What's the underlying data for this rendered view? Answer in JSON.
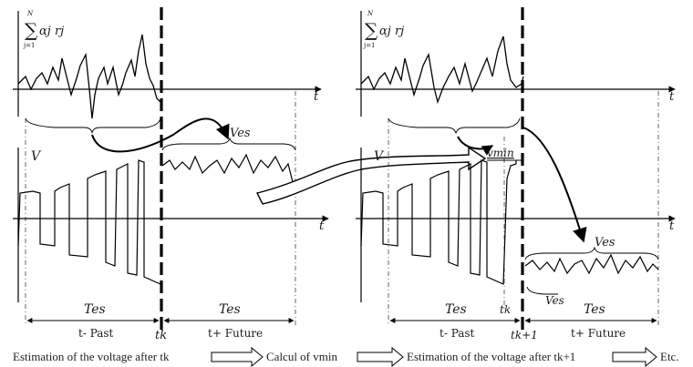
{
  "panels": {
    "left": {
      "sum_symbol": "∑",
      "sum_upper": "N",
      "sum_lower": "j=1",
      "sum_term": "αj rj",
      "axis_t": "t",
      "axis_v": "V",
      "ves": "Ves",
      "tes_left": "Tes",
      "tes_right": "Tes",
      "tk": "tk",
      "t_past": "t- Past",
      "t_future": "t+ Future"
    },
    "right": {
      "sum_symbol": "∑",
      "sum_upper": "N",
      "sum_lower": "j=1",
      "sum_term": "αj rj",
      "axis_t": "t",
      "axis_v": "V",
      "vmin": "vmin",
      "ves_top": "Ves",
      "ves_bottom": "Ves",
      "tes_left": "Tes",
      "tes_right": "Tes",
      "tk": "tk",
      "tk1": "tk+1",
      "t_past": "t- Past",
      "t_future": "t+ Future"
    }
  },
  "caption": {
    "step1": "Estimation of the voltage after tk",
    "step2": "Calcul of vmin",
    "step3": "Estimation of the voltage after tk+1",
    "step4": "Etc."
  }
}
